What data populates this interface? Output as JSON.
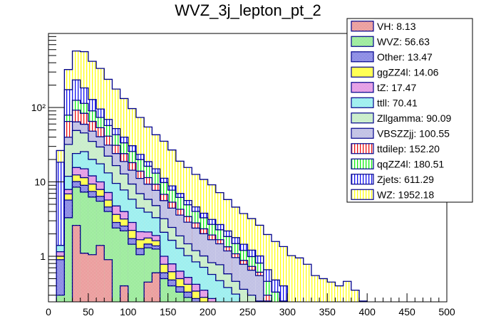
{
  "chart_data": {
    "type": "bar",
    "subtype": "stacked-histogram",
    "title": "WVZ_3j_lepton_pt_2",
    "xlabel": "",
    "ylabel": "",
    "xlim": [
      0,
      500
    ],
    "ylim": [
      0.244,
      990
    ],
    "yscale": "log",
    "grid": false,
    "bin_width": 10,
    "x_ticks": [
      "0",
      "50",
      "100",
      "150",
      "200",
      "250",
      "300",
      "350",
      "400",
      "450",
      "500"
    ],
    "x_tick_values": [
      0,
      50,
      100,
      150,
      200,
      250,
      300,
      350,
      400,
      450,
      500
    ],
    "y_ticks": [
      {
        "value": 1,
        "label": "1"
      },
      {
        "value": 10,
        "label": "10"
      },
      {
        "value": 100,
        "label": "10²"
      }
    ],
    "legend_position": "top-right",
    "series": [
      {
        "name": "VH",
        "legend": "VH: 8.13",
        "fill": "#d94444",
        "pattern": "cross",
        "start": 30,
        "values": [
          2.6,
          1.1,
          1.05,
          1.4,
          0.9,
          0,
          0.4,
          0,
          0,
          0.45,
          0.6,
          0,
          0,
          0,
          0,
          0,
          0,
          0,
          0,
          0
        ]
      },
      {
        "name": "WVZ",
        "legend": "WVZ: 56.63",
        "fill": "#44d944",
        "pattern": "cross",
        "start": 10,
        "values": [
          0.3,
          3.3,
          5.9,
          6.2,
          5.2,
          4.1,
          3.1,
          2.4,
          1.8,
          1.45,
          1.05,
          0.85,
          0.65,
          0.5,
          0.4,
          0.33,
          0.28,
          0.22,
          0.18,
          0.14,
          0.11,
          0.09,
          0.07,
          0.06,
          0.05,
          0.04
        ]
      },
      {
        "name": "Other",
        "legend": "Other: 13.47",
        "fill": "#2222cc",
        "pattern": "cross",
        "start": 10,
        "values": [
          0.6,
          2.4,
          1.6,
          1.7,
          1.2,
          0.9,
          0.6,
          0.45,
          0.35,
          0.28,
          0.22,
          0.16,
          0.13,
          0.1,
          0.08,
          0.06,
          0.05,
          0.05,
          0.04,
          0.03,
          0.03,
          0.02,
          0.02,
          0.02,
          0.01,
          0.01
        ]
      },
      {
        "name": "ggZZ4l",
        "legend": "ggZZ4l: 14.06",
        "fill": "#ffff55",
        "pattern": "solid",
        "start": 10,
        "values": [
          0.1,
          1.2,
          2.3,
          2.4,
          1.9,
          1.5,
          1.1,
          0.8,
          0.62,
          0.5,
          0.4,
          0.3,
          0.24,
          0.18,
          0.14,
          0.11,
          0.09,
          0.07,
          0.06,
          0.05,
          0.04,
          0.03,
          0.03,
          0.02,
          0.02,
          0.02
        ]
      },
      {
        "name": "tZ",
        "legend": "tZ: 17.47",
        "fill": "#cc44cc",
        "pattern": "cross",
        "start": 10,
        "values": [
          0.15,
          1.0,
          3.2,
          3.6,
          2.7,
          2.1,
          1.5,
          1.1,
          0.82,
          0.62,
          0.47,
          0.36,
          0.28,
          0.22,
          0.17,
          0.13,
          0.1,
          0.08,
          0.07,
          0.05,
          0.04,
          0.04,
          0.03,
          0.02,
          0.02,
          0.02
        ]
      },
      {
        "name": "ttll",
        "legend": "ttll: 70.41",
        "fill": "#44e0e0",
        "pattern": "cross",
        "start": 10,
        "values": [
          0.25,
          4.0,
          8.5,
          10.5,
          8.0,
          7.5,
          6.0,
          4.8,
          3.8,
          3.0,
          2.3,
          1.8,
          1.4,
          1.1,
          0.85,
          0.65,
          0.5,
          0.42,
          0.36,
          0.3,
          0.25,
          0.2,
          0.16,
          0.12,
          0.1,
          0.08
        ]
      },
      {
        "name": "Zllgamma",
        "legend": "Zllgamma: 90.09",
        "fill": "#99dd99",
        "pattern": "cross",
        "start": 20,
        "values": [
          20,
          25,
          20,
          15,
          12,
          9,
          7,
          5,
          3.5,
          2.5,
          1.9,
          1.5,
          1.1,
          0.8,
          0.6,
          0.45,
          0.35,
          0.3,
          0.25,
          0.3,
          0.2,
          0.15,
          0.12,
          0.1,
          0.08
        ]
      },
      {
        "name": "VBSZZjj",
        "legend": "VBSZZjj: 100.55",
        "fill": "#8888cc",
        "pattern": "cross",
        "start": 20,
        "values": [
          8,
          15,
          14,
          13,
          11,
          9,
          7.5,
          6,
          5,
          4.2,
          3.5,
          2.9,
          2.4,
          2.0,
          1.7,
          1.4,
          1.2,
          1.0,
          0.85,
          0.7,
          0.6,
          0.5,
          0.42,
          0.35,
          0.3,
          0.25,
          0.2,
          0.15
        ]
      },
      {
        "name": "ttdilep",
        "legend": "ttdilep: 152.20",
        "fill": "#ee1111",
        "pattern": "vlines",
        "start": 20,
        "values": [
          25,
          28,
          24,
          17,
          13,
          10,
          7,
          5.2,
          3.8,
          2.8,
          2.1,
          1.6,
          1.2,
          0.9,
          0.7,
          0.55,
          0.42,
          0.33,
          0.26,
          0.2,
          0.16,
          0.12,
          0.1,
          0.08,
          0.06,
          0.05
        ]
      },
      {
        "name": "qqZZ4l",
        "legend": "qqZZ4l: 180.51",
        "fill": "#11ee11",
        "pattern": "vlines",
        "start": 20,
        "values": [
          14,
          33,
          30,
          25,
          20,
          16,
          12,
          9.5,
          7.5,
          6,
          4.8,
          3.8,
          3.0,
          2.4,
          1.9,
          1.5,
          1.2,
          0.95,
          0.75,
          0.6,
          0.5,
          0.4,
          0.32,
          0.26,
          0.2,
          0.16,
          0.13,
          0.1
        ]
      },
      {
        "name": "Zjets",
        "legend": "Zjets: 611.29",
        "fill": "#1111ee",
        "pattern": "vlines",
        "start": 10,
        "values": [
          17,
          95,
          110,
          70,
          38,
          22,
          12,
          9,
          6.5,
          5,
          3.5,
          2.5,
          1.9,
          1.4,
          1.1,
          0.8,
          0.7,
          0.6,
          0.5,
          0.45,
          0.4,
          0.35,
          0.3,
          0.25,
          0.22,
          0.2,
          0.2,
          0.15,
          0.15,
          0.12,
          0.1,
          0.08
        ]
      },
      {
        "name": "WZ",
        "legend": "WZ: 1952.18",
        "fill": "#ffff11",
        "pattern": "vlines",
        "start": 10,
        "values": [
          8,
          150,
          340,
          380,
          290,
          240,
          170,
          125,
          92,
          66,
          50,
          36,
          28,
          24,
          18,
          12,
          10,
          8,
          7,
          6,
          4.5,
          3.6,
          2.8,
          2.3,
          2.0,
          1.6,
          1.3,
          1.1,
          0.95,
          0.9,
          0.85,
          0.7,
          0.55,
          0.5,
          0.45,
          0.4,
          0.46,
          0.35,
          0.25,
          0,
          0.24
        ]
      }
    ],
    "stack_totals_approx": {
      "x_bins_start": [
        10,
        20,
        30,
        40,
        50,
        60,
        70,
        80,
        90,
        100,
        110,
        120,
        130,
        140,
        150,
        160,
        170,
        180,
        190,
        200,
        210,
        220,
        230,
        240,
        250,
        260,
        270,
        280,
        290,
        300,
        310,
        320,
        330,
        340,
        350,
        360,
        370,
        380,
        390,
        400
      ],
      "note": "top of stack per bin estimated from log axis"
    }
  }
}
